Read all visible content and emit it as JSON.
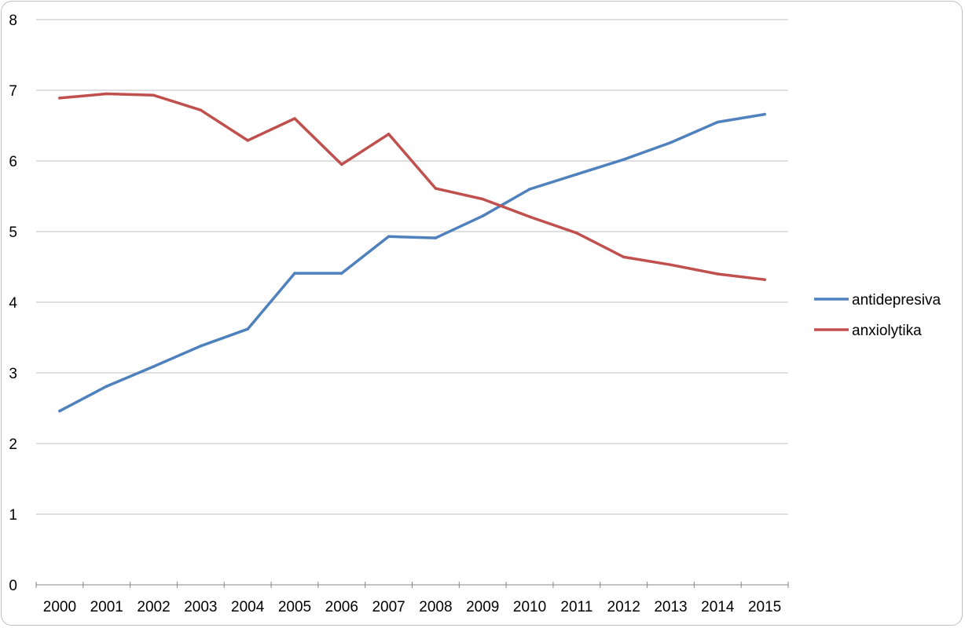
{
  "chart_data": {
    "type": "line",
    "x": [
      "2000",
      "2001",
      "2002",
      "2003",
      "2004",
      "2005",
      "2006",
      "2007",
      "2008",
      "2009",
      "2010",
      "2011",
      "2012",
      "2013",
      "2014",
      "2015"
    ],
    "ylim": [
      0,
      8
    ],
    "yticks": [
      "0",
      "1",
      "2",
      "3",
      "4",
      "5",
      "6",
      "7",
      "8"
    ],
    "grid": true,
    "legend_position": "right",
    "series": [
      {
        "name": "antidepresiva",
        "color": "#4f81bd",
        "values": [
          2.46,
          2.81,
          3.09,
          3.38,
          3.62,
          4.41,
          4.41,
          4.93,
          4.91,
          5.22,
          5.6,
          5.81,
          6.02,
          6.26,
          6.55,
          6.66
        ]
      },
      {
        "name": "anxiolytika",
        "color": "#c0504d",
        "values": [
          6.89,
          6.95,
          6.93,
          6.72,
          6.29,
          6.6,
          5.95,
          6.38,
          5.61,
          5.46,
          5.21,
          4.98,
          4.64,
          4.53,
          4.4,
          4.32
        ]
      }
    ]
  }
}
